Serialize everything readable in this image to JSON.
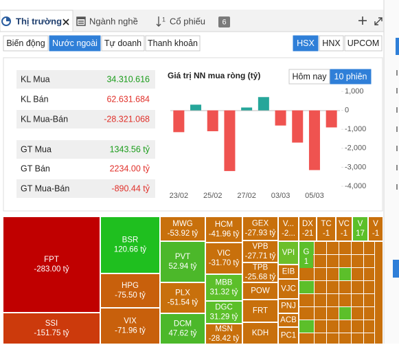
{
  "tabs": [
    "Thị trường",
    "Ngành nghề",
    "Cổ phiếu"
  ],
  "tab_count": "6",
  "filters": [
    "Biến động",
    "Nước ngoài",
    "Tự doanh",
    "Thanh khoản"
  ],
  "active_filter": 1,
  "exchanges": [
    "HSX",
    "HNX",
    "UPCOM"
  ],
  "active_exchange": 0,
  "summary": [
    [
      {
        "label": "KL Mua",
        "value": "34.310.616",
        "color": "#1a9c1a"
      },
      {
        "label": "KL Bán",
        "value": "62.631.684",
        "color": "#e0302a"
      },
      {
        "label": "KL Mua-Bán",
        "value": "-28.321.068",
        "color": "#e0302a"
      }
    ],
    [
      {
        "label": "GT Mua",
        "value": "1343.56 tỷ",
        "color": "#1a9c1a"
      },
      {
        "label": "GT Bán",
        "value": "2234.00 tỷ",
        "color": "#e0302a"
      },
      {
        "label": "GT Mua-Bán",
        "value": "-890.44 tỷ",
        "color": "#e0302a"
      }
    ]
  ],
  "chart_data": {
    "type": "bar",
    "title": "Giá trị NN mua ròng (tỷ)",
    "range_buttons": [
      "Hôm nay",
      "10 phiên"
    ],
    "active_range": 1,
    "categories": [
      "23/02",
      null,
      "25/02",
      null,
      "27/02",
      null,
      "03/03",
      null,
      "05/03",
      null
    ],
    "values": [
      -1150,
      300,
      -1100,
      -3200,
      150,
      700,
      -800,
      -1700,
      -3150,
      -900
    ],
    "positive_color": "#26a69a",
    "negative_color": "#ef5350",
    "ylim": [
      -4000,
      1000
    ],
    "yticks": [
      {
        "value": 1000,
        "label": "1,000"
      },
      0,
      {
        "value": -1000,
        "label": "-1,000"
      },
      {
        "value": -2000,
        "label": "-2,000"
      },
      {
        "value": -3000,
        "label": "-3,000"
      },
      {
        "value": -4000,
        "label": "-4,000"
      }
    ],
    "grid": false
  },
  "treemap": [
    {
      "label": "FPT",
      "value": "-283.00 tỷ",
      "color": "#c00000"
    },
    {
      "label": "SSI",
      "value": "-151.75 tỷ",
      "color": "#cc3a0c"
    },
    {
      "label": "BSR",
      "value": "120.66 tỷ",
      "color": "#1fbf1f"
    },
    {
      "label": "HPG",
      "value": "-75.50 tỷ",
      "color": "#c8600c"
    },
    {
      "label": "VIX",
      "value": "-71.96 tỷ",
      "color": "#c8600c"
    },
    {
      "label": "MWG",
      "value": "-53.92 tỷ",
      "color": "#c8700c"
    },
    {
      "label": "PVT",
      "value": "52.94 tỷ",
      "color": "#4cb82a"
    },
    {
      "label": "PLX",
      "value": "-51.54 tỷ",
      "color": "#c8700c"
    },
    {
      "label": "DCM",
      "value": "47.62 tỷ",
      "color": "#4cb82a"
    },
    {
      "label": "HCM",
      "value": "-41.96 tỷ",
      "color": "#c8700c"
    },
    {
      "label": "VIC",
      "value": "-31.70 tỷ",
      "color": "#c8700c"
    },
    {
      "label": "MBB",
      "value": "31.32 tỷ",
      "color": "#5cbf2a"
    },
    {
      "label": "DGC",
      "value": "31.29 tỷ",
      "color": "#5cbf2a"
    },
    {
      "label": "MSN",
      "value": "-28.42 tỷ",
      "color": "#c8700c"
    },
    {
      "label": "GEX",
      "value": "-27.93 tỷ",
      "color": "#c8700c"
    },
    {
      "label": "VPB",
      "value": "-27.71 tỷ",
      "color": "#c8700c"
    },
    {
      "label": "TPB",
      "value": "-25.68 tỷ",
      "color": "#c8700c"
    },
    {
      "label": "POW",
      "color": "#c8700c"
    },
    {
      "label": "FRT",
      "color": "#c8700c"
    },
    {
      "label": "KDH",
      "color": "#c8700c"
    },
    {
      "label": "V...",
      "value": "-2...",
      "color": "#c8700c"
    },
    {
      "label": "VPI",
      "color": "#6cbf2a"
    },
    {
      "label": "EIB",
      "color": "#c8700c"
    },
    {
      "label": "VJC",
      "color": "#c8700c"
    },
    {
      "label": "PNJ",
      "color": "#c8700c"
    },
    {
      "label": "ACB",
      "color": "#c8700c"
    },
    {
      "label": "PC1",
      "color": "#c8700c"
    },
    {
      "label": "DX",
      "value": "-21",
      "color": "#c8700c"
    },
    {
      "label": "TC",
      "value": "-1",
      "color": "#c8700c"
    },
    {
      "label": "VC",
      "value": "-1",
      "color": "#c8700c"
    },
    {
      "label": "V",
      "value": "17",
      "color": "#5cbf2a"
    },
    {
      "label": "V",
      "value": "-1",
      "color": "#c8700c"
    },
    {
      "label": "G",
      "value": "1",
      "color": "#5cbf2a"
    }
  ]
}
